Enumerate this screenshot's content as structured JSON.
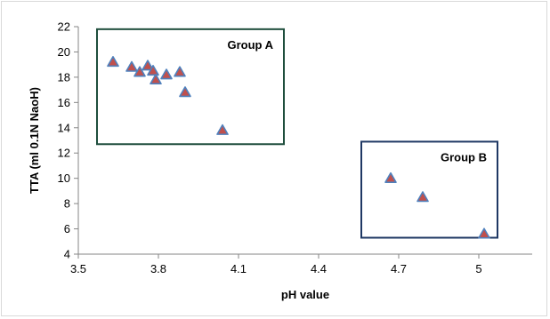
{
  "chart_data": {
    "type": "scatter",
    "xlabel": "pH  value",
    "ylabel": "TTA (ml 0.1N NaoH)",
    "xlim": [
      3.5,
      5.2
    ],
    "ylim": [
      4,
      22
    ],
    "x_ticks": [
      3.5,
      3.8,
      4.1,
      4.4,
      4.7,
      5.0
    ],
    "x_tick_labels": [
      "3.5",
      "3.8",
      "4.1",
      "4.4",
      "4.7",
      "5"
    ],
    "y_ticks": [
      4,
      6,
      8,
      10,
      12,
      14,
      16,
      18,
      20,
      22
    ],
    "y_tick_labels": [
      "4",
      "6",
      "8",
      "10",
      "12",
      "14",
      "16",
      "18",
      "20",
      "22"
    ],
    "grid": false,
    "marker": {
      "shape": "triangle",
      "fill": "#C0504D",
      "edge": "#4F81BD"
    },
    "points": [
      {
        "x": 3.63,
        "y": 19.2
      },
      {
        "x": 3.7,
        "y": 18.8
      },
      {
        "x": 3.73,
        "y": 18.4
      },
      {
        "x": 3.76,
        "y": 18.9
      },
      {
        "x": 3.78,
        "y": 18.5
      },
      {
        "x": 3.79,
        "y": 17.8
      },
      {
        "x": 3.83,
        "y": 18.2
      },
      {
        "x": 3.88,
        "y": 18.4
      },
      {
        "x": 3.9,
        "y": 16.8
      },
      {
        "x": 4.04,
        "y": 13.8
      },
      {
        "x": 4.67,
        "y": 10.0
      },
      {
        "x": 4.79,
        "y": 8.5
      },
      {
        "x": 5.02,
        "y": 5.6
      }
    ],
    "annotations": [
      {
        "label": "Group A",
        "box": {
          "x0": 3.57,
          "x1": 4.27,
          "y0": 12.7,
          "y1": 21.8
        },
        "box_color": "#1F4E3D"
      },
      {
        "label": "Group B",
        "box": {
          "x0": 4.56,
          "x1": 5.07,
          "y0": 5.3,
          "y1": 12.9
        },
        "box_color": "#1F3864"
      }
    ]
  }
}
